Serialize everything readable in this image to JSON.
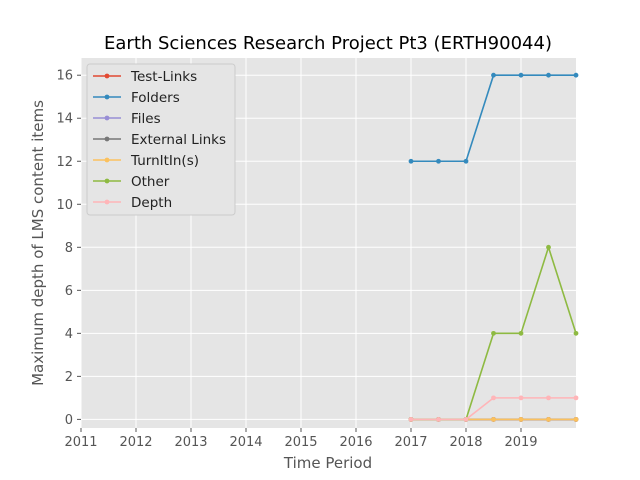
{
  "chart_data": {
    "type": "line",
    "title": "Earth Sciences Research Project Pt3 (ERTH90044)",
    "xlabel": "Time Period",
    "ylabel": "Maximum depth of LMS content items",
    "xlim": [
      2011,
      2020
    ],
    "ylim": [
      -0.4,
      16.8
    ],
    "xticks": [
      2011,
      2012,
      2013,
      2014,
      2015,
      2016,
      2017,
      2018,
      2019
    ],
    "yticks": [
      0,
      2,
      4,
      6,
      8,
      10,
      12,
      14,
      16
    ],
    "grid": true,
    "legend_position": "upper-left",
    "x": [
      2017.0,
      2017.5,
      2018.0,
      2018.5,
      2019.0,
      2019.5,
      2020.0
    ],
    "series": [
      {
        "name": "Test-Links",
        "color": "#E24A33",
        "values": [
          0,
          0,
          0,
          0,
          0,
          0,
          0
        ]
      },
      {
        "name": "Folders",
        "color": "#348ABD",
        "values": [
          12,
          12,
          12,
          16,
          16,
          16,
          16
        ]
      },
      {
        "name": "Files",
        "color": "#988ED5",
        "values": [
          0,
          0,
          0,
          0,
          0,
          0,
          0
        ]
      },
      {
        "name": "External Links",
        "color": "#777777",
        "values": [
          0,
          0,
          0,
          0,
          0,
          0,
          0
        ]
      },
      {
        "name": "TurnItIn(s)",
        "color": "#FBC15E",
        "values": [
          0,
          0,
          0,
          0,
          0,
          0,
          0
        ]
      },
      {
        "name": "Other",
        "color": "#8EBA42",
        "values": [
          0,
          0,
          0,
          4,
          4,
          8,
          4
        ]
      },
      {
        "name": "Depth",
        "color": "#FFB5B8",
        "values": [
          0,
          0,
          0,
          1,
          1,
          1,
          1
        ]
      }
    ]
  }
}
